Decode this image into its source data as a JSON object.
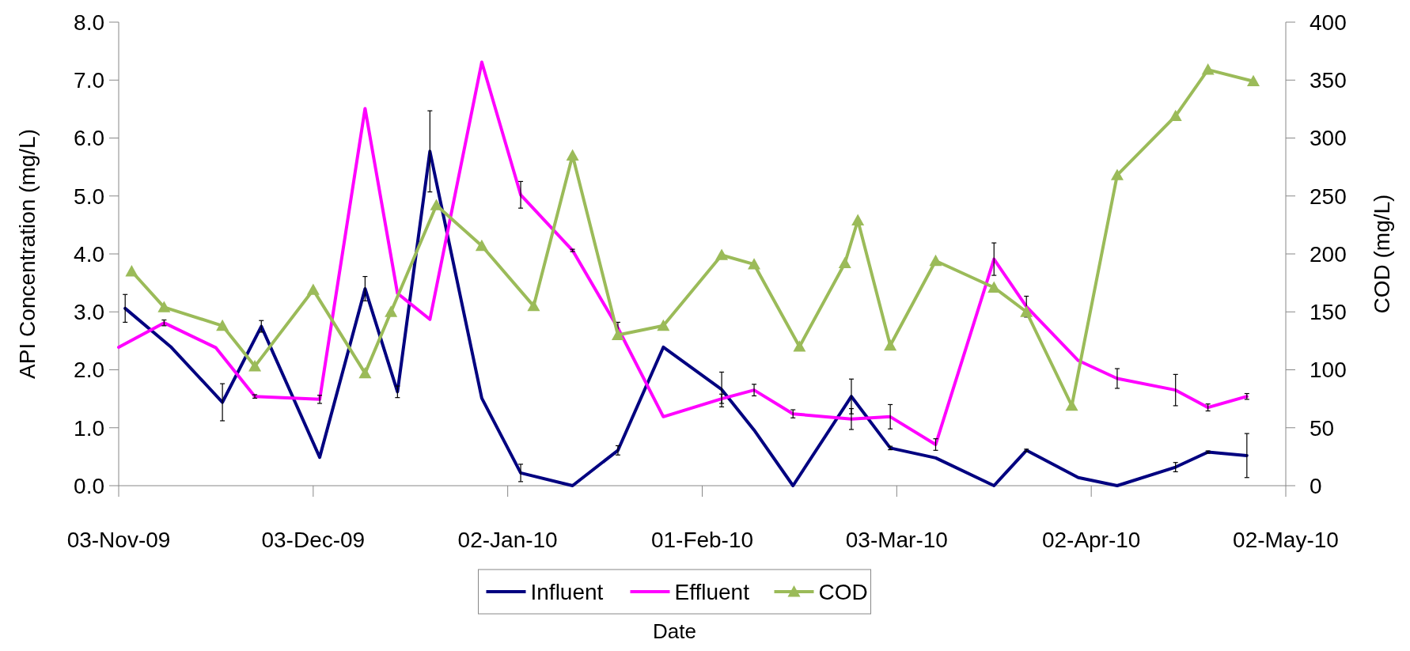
{
  "chart_data": {
    "type": "line",
    "xlabel": "Date",
    "ylabel": "API Concentration  (mg/L)",
    "y2label": "COD (mg/L)",
    "xlim": [
      "2009-11-03",
      "2010-05-02"
    ],
    "xticks": [
      {
        "value": "2009-11-03",
        "label": "03-Nov-09"
      },
      {
        "value": "2009-12-03",
        "label": "03-Dec-09"
      },
      {
        "value": "2010-01-02",
        "label": "02-Jan-10"
      },
      {
        "value": "2010-02-01",
        "label": "01-Feb-10"
      },
      {
        "value": "2010-03-03",
        "label": "03-Mar-10"
      },
      {
        "value": "2010-04-02",
        "label": "02-Apr-10"
      },
      {
        "value": "2010-05-02",
        "label": "02-May-10"
      }
    ],
    "ylim": [
      0,
      8
    ],
    "yticks": [
      {
        "value": 0,
        "label": "0.0"
      },
      {
        "value": 1,
        "label": "1.0"
      },
      {
        "value": 2,
        "label": "2.0"
      },
      {
        "value": 3,
        "label": "3.0"
      },
      {
        "value": 4,
        "label": "4.0"
      },
      {
        "value": 5,
        "label": "5.0"
      },
      {
        "value": 6,
        "label": "6.0"
      },
      {
        "value": 7,
        "label": "7.0"
      },
      {
        "value": 8,
        "label": "8.0"
      }
    ],
    "y2lim": [
      0,
      400
    ],
    "y2ticks": [
      0,
      50,
      100,
      150,
      200,
      250,
      300,
      350,
      400
    ],
    "grid": false,
    "legend": "bottom",
    "line_style": "solid",
    "series": [
      {
        "name": "Influent",
        "color": "#000080",
        "marker": "none",
        "x": [
          "2009-11-04",
          "2009-11-11",
          "2009-11-19",
          "2009-11-25",
          "2009-12-04",
          "2009-12-11",
          "2009-12-16",
          "2009-12-21",
          "2009-12-29",
          "2010-01-04",
          "2010-01-12",
          "2010-01-19",
          "2010-01-26",
          "2010-02-04",
          "2010-02-09",
          "2010-02-15",
          "2010-02-24",
          "2010-03-02",
          "2010-03-09",
          "2010-03-18",
          "2010-03-23",
          "2010-03-31",
          "2010-04-06",
          "2010-04-15",
          "2010-04-20",
          "2010-04-26"
        ],
        "values": [
          3.06,
          2.4,
          1.44,
          2.75,
          0.49,
          3.4,
          1.62,
          5.77,
          1.51,
          0.22,
          0,
          0.61,
          2.39,
          1.66,
          0.96,
          0,
          1.54,
          0.65,
          0.48,
          0,
          0.61,
          0.14,
          0,
          0.32,
          0.58,
          0.52
        ],
        "errors": [
          0.24,
          null,
          0.32,
          0.1,
          null,
          0.21,
          0.1,
          0.7,
          null,
          0.15,
          null,
          0.08,
          null,
          0.3,
          null,
          null,
          0.3,
          0.03,
          null,
          null,
          0.02,
          null,
          null,
          0.08,
          0.02,
          0.38
        ]
      },
      {
        "name": "Effluent",
        "color": "#ff00ff",
        "marker": "none",
        "x": [
          "2009-11-03",
          "2009-11-10",
          "2009-11-18",
          "2009-11-24",
          "2009-12-04",
          "2009-12-11",
          "2009-12-16",
          "2009-12-21",
          "2009-12-29",
          "2010-01-04",
          "2010-01-12",
          "2010-01-19",
          "2010-01-26",
          "2010-02-04",
          "2010-02-09",
          "2010-02-15",
          "2010-02-24",
          "2010-03-02",
          "2010-03-09",
          "2010-03-18",
          "2010-03-23",
          "2010-03-31",
          "2010-04-06",
          "2010-04-15",
          "2010-04-20",
          "2010-04-26"
        ],
        "values": [
          2.39,
          2.81,
          2.38,
          1.54,
          1.49,
          6.51,
          3.32,
          2.87,
          7.31,
          5.02,
          4.06,
          2.72,
          1.19,
          1.5,
          1.65,
          1.24,
          1.15,
          1.19,
          0.71,
          3.91,
          3.09,
          2.16,
          1.85,
          1.65,
          1.35,
          1.54
        ],
        "errors": [
          null,
          0.05,
          null,
          0.03,
          0.07,
          null,
          null,
          null,
          null,
          0.23,
          0.02,
          0.1,
          null,
          0.08,
          0.1,
          0.07,
          0.18,
          0.21,
          0.1,
          0.28,
          0.18,
          null,
          0.17,
          0.27,
          0.06,
          0.05
        ]
      },
      {
        "name": "COD",
        "color": "#9bbb59",
        "marker": "triangle",
        "axis": "y2",
        "x": [
          "2009-11-05",
          "2009-11-10",
          "2009-11-19",
          "2009-11-24",
          "2009-12-03",
          "2009-12-11",
          "2009-12-15",
          "2009-12-22",
          "2009-12-29",
          "2010-01-06",
          "2010-01-12",
          "2010-01-19",
          "2010-01-26",
          "2010-02-04",
          "2010-02-09",
          "2010-02-16",
          "2010-02-23",
          "2010-02-25",
          "2010-03-02",
          "2010-03-09",
          "2010-03-18",
          "2010-03-23",
          "2010-03-30",
          "2010-04-06",
          "2010-04-15",
          "2010-04-20",
          "2010-04-27"
        ],
        "values": [
          185,
          154,
          138,
          103,
          169,
          97,
          150,
          242,
          207,
          155,
          285,
          130,
          138,
          199,
          191,
          120,
          192,
          229,
          121,
          194,
          171,
          150,
          69,
          268,
          319,
          359,
          349
        ]
      }
    ]
  }
}
